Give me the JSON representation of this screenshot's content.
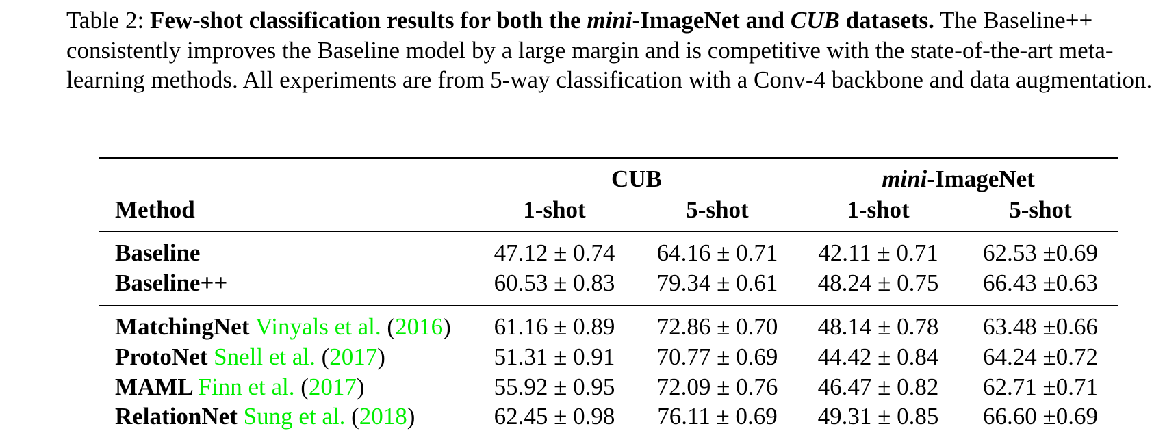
{
  "caption": {
    "label": "Table 2:",
    "title_part1": "Few-shot classification results for both the",
    "title_italic1": "mini",
    "title_part2": "-ImageNet and",
    "title_italic2": "CUB",
    "title_part3": "datasets.",
    "body": "The Baseline++ consistently improves the Baseline model by a large margin and is competitive with the state-of-the-art meta-learning methods. All experiments are from 5-way classification with a Conv-4 backbone and data augmentation."
  },
  "table": {
    "group_cub": "CUB",
    "group_mini_italic": "mini",
    "group_mini_rest": "-ImageNet",
    "method_header": "Method",
    "shot_headers": [
      "1-shot",
      "5-shot",
      "1-shot",
      "5-shot"
    ],
    "rows": [
      {
        "method": "Baseline",
        "cite": "",
        "year": "",
        "values": [
          "47.12 ± 0.74",
          "64.16 ± 0.71",
          "42.11 ± 0.71",
          "62.53 ±0.69"
        ]
      },
      {
        "method": "Baseline++",
        "cite": "",
        "year": "",
        "values": [
          "60.53 ± 0.83",
          "79.34 ± 0.61",
          "48.24 ± 0.75",
          "66.43 ±0.63"
        ]
      },
      {
        "method": "MatchingNet",
        "cite": "Vinyals et al.",
        "year": "2016",
        "values": [
          "61.16 ± 0.89",
          "72.86 ± 0.70",
          "48.14 ± 0.78",
          "63.48 ±0.66"
        ]
      },
      {
        "method": "ProtoNet",
        "cite": "Snell et al.",
        "year": "2017",
        "values": [
          "51.31 ± 0.91",
          "70.77 ± 0.69",
          "44.42 ± 0.84",
          "64.24 ±0.72"
        ]
      },
      {
        "method": "MAML",
        "cite": "Finn et al.",
        "year": "2017",
        "values": [
          "55.92 ± 0.95",
          "72.09 ± 0.76",
          "46.47 ± 0.82",
          "62.71 ±0.71"
        ]
      },
      {
        "method": "RelationNet",
        "cite": "Sung et al.",
        "year": "2018",
        "values": [
          "62.45 ± 0.98",
          "76.11 ± 0.69",
          "49.31 ± 0.85",
          "66.60 ±0.69"
        ]
      }
    ]
  },
  "colors": {
    "citation": "#00ee00",
    "text": "#000000"
  }
}
